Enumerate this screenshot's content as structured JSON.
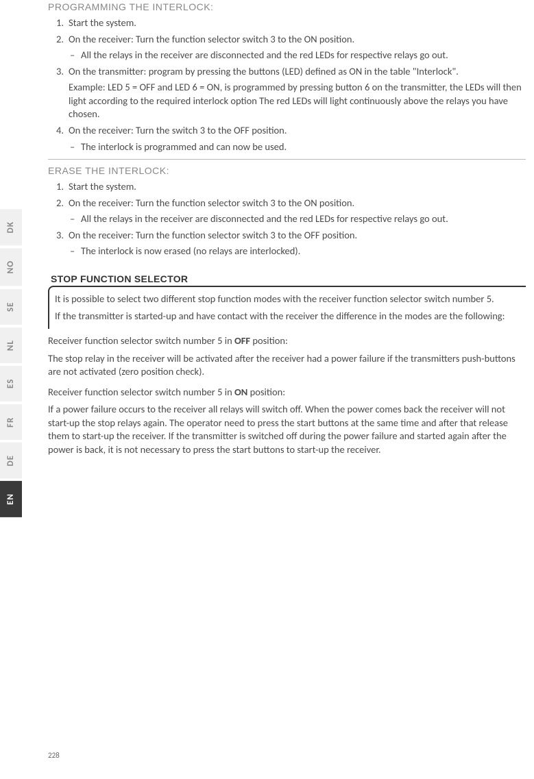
{
  "tabs": [
    {
      "label": "DK",
      "active": false
    },
    {
      "label": "NO",
      "active": false
    },
    {
      "label": "SE",
      "active": false
    },
    {
      "label": "NL",
      "active": false
    },
    {
      "label": "ES",
      "active": false
    },
    {
      "label": "FR",
      "active": false
    },
    {
      "label": "DE",
      "active": false
    },
    {
      "label": "EN",
      "active": true
    }
  ],
  "section1": {
    "heading": "PROGRAMMING THE INTERLOCK:",
    "items": [
      {
        "num": "1.",
        "text": "Start the system."
      },
      {
        "num": "2.",
        "text": "On the receiver: Turn the function selector switch 3 to the ON position.",
        "sub": [
          "All the relays in the receiver are disconnected and the red LEDs for respective relays go out."
        ]
      },
      {
        "num": "3.",
        "text": "On the transmitter: program by pressing the buttons (LED) defined as ON in the table \"Interlock\".",
        "example": "Example: LED 5 = OFF and LED 6 = ON, is programmed by pressing button 6 on the transmitter, the LEDs will then light according to the required interlock option The red LEDs will light continuously above the relays you have chosen."
      },
      {
        "num": "4.",
        "text": "On the receiver: Turn the switch 3 to the OFF position.",
        "sub": [
          "The interlock is programmed and can now be used."
        ]
      }
    ]
  },
  "section2": {
    "heading": "ERASE THE INTERLOCK:",
    "items": [
      {
        "num": "1.",
        "text": "Start the system."
      },
      {
        "num": "2.",
        "text": "On the receiver: Turn the function selector switch 3 to the ON position.",
        "sub": [
          "All the relays in the receiver are disconnected and the red LEDs for respective relays go out."
        ]
      },
      {
        "num": "3.",
        "text": "On the receiver: Turn the function selector switch 3 to the OFF position.",
        "sub": [
          "The interlock is now erased (no relays are interlocked)."
        ]
      }
    ]
  },
  "stop": {
    "title": "STOP FUNCTION SELECTOR",
    "intro1": "It is possible to select two different stop function modes with the receiver function selector switch number 5.",
    "intro2": "If the transmitter is started-up and have contact with the receiver the difference in the modes are the following:",
    "off_head_pre": "Receiver function selector switch number 5 in ",
    "off_bold": "OFF",
    "off_head_post": " position:",
    "off_body": "The stop relay in the receiver will be activated after the receiver had a power failure if the transmitters push-buttons are not activated (zero position check).",
    "on_head_pre": "Receiver function selector switch number 5 in ",
    "on_bold": "ON",
    "on_head_post": " position:",
    "on_body": "If a power failure occurs to the receiver all relays will switch off. When the power comes back the receiver will not start-up the stop relays again. The operator need to press the start buttons at the same time and after that release them to start-up the receiver. If the transmitter is switched off during the power failure and started again after the power is back, it is not necessary to press the start buttons to start-up the receiver."
  },
  "page_number": "228",
  "colors": {
    "text": "#4a4a4a",
    "heading_gray": "#888888",
    "tab_inactive_bg": "#f0f0f0",
    "tab_inactive_fg": "#888888",
    "tab_active_bg": "#3a3a3a",
    "tab_active_fg": "#ffffff",
    "border": "#333333"
  },
  "typography": {
    "body_fontsize": 14.5,
    "heading_fontsize": 14,
    "tab_fontsize": 13,
    "page_num_fontsize": 11
  }
}
